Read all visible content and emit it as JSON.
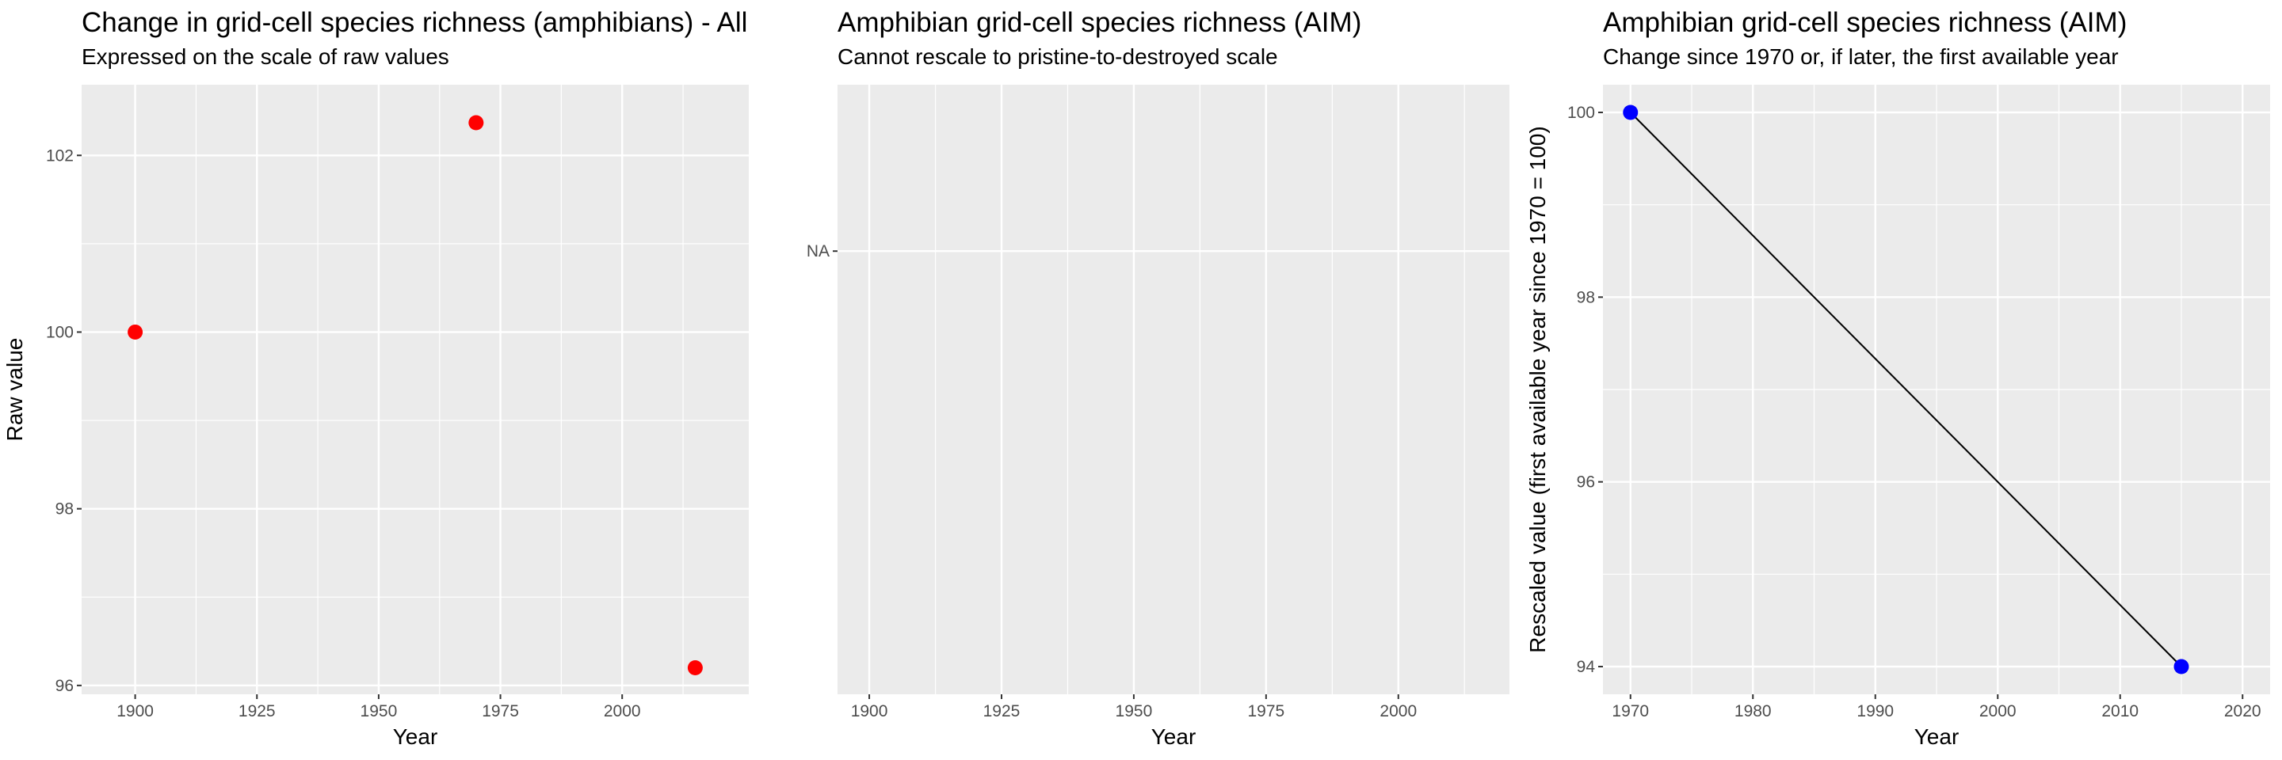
{
  "chart_data": [
    {
      "type": "scatter",
      "title": "Change in grid-cell species richness (amphibians) - All",
      "subtitle": "Expressed on the scale of raw values",
      "xlabel": "Year",
      "ylabel": "Raw value",
      "xlim": [
        1889,
        2026
      ],
      "ylim": [
        95.9,
        102.8
      ],
      "xticks": [
        1900,
        1925,
        1950,
        1975,
        2000
      ],
      "yticks": [
        96,
        98,
        100,
        102
      ],
      "grid": true,
      "series": [
        {
          "color": "#ff0000",
          "x": [
            1900,
            1970,
            2015
          ],
          "y": [
            100,
            102.37,
            96.2
          ]
        }
      ]
    },
    {
      "type": "scatter",
      "title": "Amphibian grid-cell species richness (AIM)",
      "subtitle": "Cannot rescale to pristine-to-destroyed scale",
      "xlabel": "Year",
      "ylabel": "",
      "xlim": [
        1894,
        2021
      ],
      "xticks": [
        1900,
        1925,
        1950,
        1975,
        2000
      ],
      "ytick_labels": [
        "NA"
      ],
      "grid": true,
      "series": []
    },
    {
      "type": "line",
      "title": "Amphibian grid-cell species richness (AIM)",
      "subtitle": "Change since 1970 or, if later, the first available year",
      "xlabel": "Year",
      "ylabel": "Rescaled value (first available year since 1970 = 100)",
      "xlim": [
        1967.75,
        2022.25
      ],
      "ylim": [
        93.7,
        100.3
      ],
      "xticks": [
        1970,
        1980,
        1990,
        2000,
        2010,
        2020
      ],
      "yticks": [
        94,
        96,
        98,
        100
      ],
      "grid": true,
      "series": [
        {
          "color": "#0000ff",
          "line_color": "#000000",
          "x": [
            1970,
            2015
          ],
          "y": [
            100,
            94
          ]
        }
      ]
    }
  ]
}
